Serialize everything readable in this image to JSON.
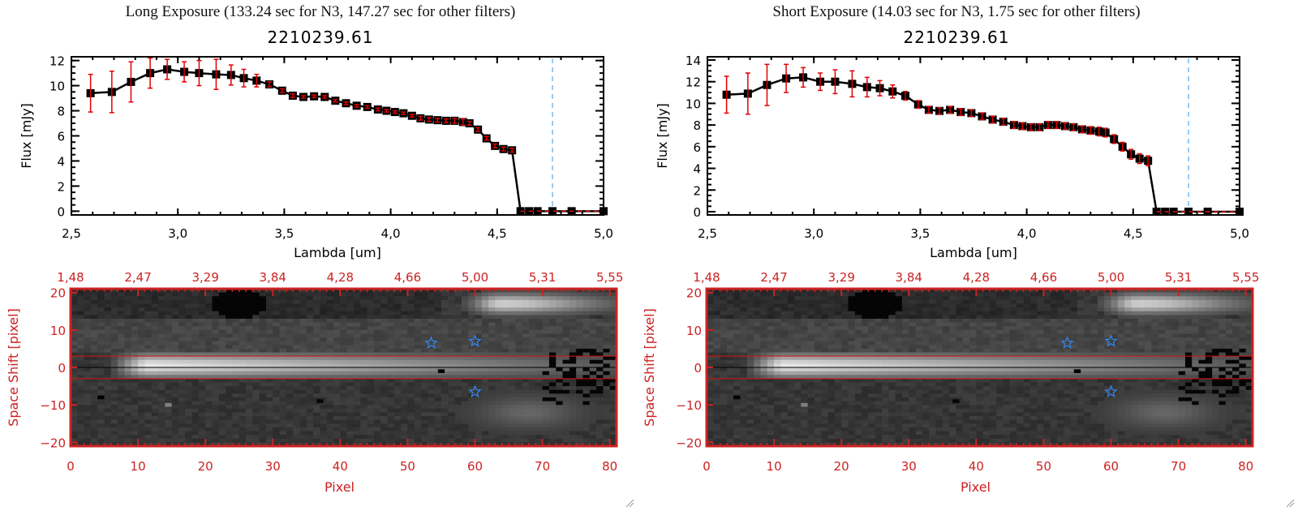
{
  "panels": [
    {
      "exposure_title": "Long Exposure (133.24 sec for N3, 147.27 sec for other filters)",
      "object_id": "2210239.61"
    },
    {
      "exposure_title": "Short Exposure (14.03 sec for N3, 1.75 sec for other filters)",
      "object_id": "2210239.61"
    }
  ],
  "chart_data": [
    {
      "type": "line",
      "title": "2210239.61",
      "subtitle": "Long Exposure (133.24 sec for N3, 147.27 sec for other filters)",
      "xlabel": "Lambda [um]",
      "ylabel": "Flux [mJy]",
      "xlim": [
        2.5,
        5.0
      ],
      "ylim": [
        -0.3,
        12.3
      ],
      "xticks": [
        "2.5",
        "3.0",
        "3.5",
        "4.0",
        "4.5",
        "5.0"
      ],
      "yticks": [
        "0",
        "2",
        "4",
        "6",
        "8",
        "10",
        "12"
      ],
      "vline_x": 4.76,
      "zero_line": true,
      "series": [
        {
          "name": "flux",
          "x": [
            2.59,
            2.69,
            2.78,
            2.87,
            2.95,
            3.03,
            3.1,
            3.18,
            3.25,
            3.31,
            3.37,
            3.43,
            3.49,
            3.54,
            3.59,
            3.64,
            3.69,
            3.74,
            3.79,
            3.84,
            3.89,
            3.94,
            3.98,
            4.02,
            4.06,
            4.1,
            4.14,
            4.18,
            4.22,
            4.26,
            4.3,
            4.34,
            4.37,
            4.41,
            4.45,
            4.49,
            4.53,
            4.57,
            4.61,
            4.65,
            4.69,
            4.76,
            4.85,
            5.0
          ],
          "y": [
            9.4,
            9.5,
            10.3,
            11.0,
            11.3,
            11.1,
            11.0,
            10.9,
            10.85,
            10.6,
            10.4,
            10.1,
            9.6,
            9.2,
            9.1,
            9.15,
            9.1,
            8.8,
            8.6,
            8.4,
            8.3,
            8.1,
            8.0,
            7.9,
            7.8,
            7.6,
            7.4,
            7.3,
            7.25,
            7.2,
            7.2,
            7.1,
            7.0,
            6.5,
            5.8,
            5.2,
            4.95,
            4.85,
            0,
            0,
            0,
            0,
            0,
            0
          ],
          "yerr": [
            1.5,
            1.65,
            1.6,
            1.2,
            0.8,
            0.8,
            1.0,
            1.2,
            0.8,
            0.7,
            0.5,
            0.2,
            0.15,
            0.15,
            0.1,
            0.1,
            0.1,
            0.1,
            0.1,
            0.1,
            0.1,
            0.1,
            0.1,
            0.1,
            0.1,
            0.1,
            0.15,
            0.15,
            0.15,
            0.15,
            0.2,
            0.25,
            0.15,
            0.15,
            0.15,
            0.15,
            0.15,
            0.15,
            0,
            0,
            0,
            0,
            0,
            0
          ]
        }
      ]
    },
    {
      "type": "line",
      "title": "2210239.61",
      "subtitle": "Short Exposure (14.03 sec for N3, 1.75 sec for other filters)",
      "xlabel": "Lambda [um]",
      "ylabel": "Flux [mJy]",
      "xlim": [
        2.5,
        5.0
      ],
      "ylim": [
        -0.3,
        14.3
      ],
      "xticks": [
        "2.5",
        "3.0",
        "3.5",
        "4.0",
        "4.5",
        "5.0"
      ],
      "yticks": [
        "0",
        "2",
        "4",
        "6",
        "8",
        "10",
        "12",
        "14"
      ],
      "vline_x": 4.76,
      "zero_line": true,
      "series": [
        {
          "name": "flux",
          "x": [
            2.59,
            2.69,
            2.78,
            2.87,
            2.95,
            3.03,
            3.1,
            3.18,
            3.25,
            3.31,
            3.37,
            3.43,
            3.49,
            3.54,
            3.59,
            3.64,
            3.69,
            3.74,
            3.79,
            3.84,
            3.89,
            3.94,
            3.98,
            4.02,
            4.06,
            4.1,
            4.14,
            4.18,
            4.22,
            4.26,
            4.3,
            4.34,
            4.37,
            4.41,
            4.45,
            4.49,
            4.53,
            4.57,
            4.61,
            4.65,
            4.69,
            4.76,
            4.85,
            5.0
          ],
          "y": [
            10.8,
            10.9,
            11.7,
            12.3,
            12.4,
            12.0,
            12.0,
            11.8,
            11.5,
            11.4,
            11.1,
            10.7,
            9.9,
            9.4,
            9.3,
            9.4,
            9.2,
            9.1,
            8.8,
            8.5,
            8.3,
            8.0,
            7.9,
            7.8,
            7.8,
            8.0,
            8.0,
            7.9,
            7.8,
            7.6,
            7.5,
            7.4,
            7.3,
            6.7,
            6.0,
            5.3,
            4.9,
            4.7,
            0,
            0,
            0,
            0,
            0,
            0
          ],
          "yerr": [
            1.7,
            1.9,
            1.9,
            1.3,
            0.9,
            0.8,
            1.1,
            1.2,
            0.9,
            0.7,
            0.6,
            0.4,
            0.35,
            0.3,
            0.3,
            0.3,
            0.3,
            0.3,
            0.3,
            0.3,
            0.3,
            0.3,
            0.3,
            0.3,
            0.3,
            0.3,
            0.3,
            0.3,
            0.3,
            0.3,
            0.35,
            0.4,
            0.4,
            0.4,
            0.4,
            0.45,
            0.45,
            0.45,
            0,
            0,
            0,
            0,
            0,
            0
          ]
        }
      ]
    },
    {
      "type": "heatmap",
      "xlabel": "Pixel",
      "ylabel": "Space Shift [pixel]",
      "xlim": [
        0,
        81
      ],
      "ylim": [
        -21,
        21
      ],
      "xticks": [
        "0",
        "10",
        "20",
        "30",
        "40",
        "50",
        "60",
        "70",
        "80"
      ],
      "yticks": [
        "-20",
        "-10",
        "0",
        "10",
        "20"
      ],
      "top_axis_ticks": [
        "1.48",
        "2.47",
        "3.29",
        "3.84",
        "4.28",
        "4.66",
        "5.00",
        "5.31",
        "5.55"
      ],
      "aperture_lines_y": [
        -3,
        3
      ],
      "center_line_y": 0,
      "star_markers": [
        [
          53.5,
          6.5
        ],
        [
          60,
          7
        ],
        [
          60,
          -6.5
        ]
      ],
      "sources": [
        {
          "name": "target-trace",
          "x_start": 7,
          "x_peak": 11,
          "y": 0.5,
          "brightness": 0.95
        },
        {
          "name": "upper-blob",
          "x_center": 64,
          "y": 17,
          "brightness": 0.85
        },
        {
          "name": "lower-blob",
          "x_center": 68,
          "y": -12,
          "brightness": 0.45
        }
      ]
    },
    {
      "type": "heatmap",
      "xlabel": "Pixel",
      "ylabel": "Space Shift [pixel]",
      "xlim": [
        0,
        81
      ],
      "ylim": [
        -21,
        21
      ],
      "xticks": [
        "0",
        "10",
        "20",
        "30",
        "40",
        "50",
        "60",
        "70",
        "80"
      ],
      "yticks": [
        "-20",
        "-10",
        "0",
        "10",
        "20"
      ],
      "top_axis_ticks": [
        "1.48",
        "2.47",
        "3.29",
        "3.84",
        "4.28",
        "4.66",
        "5.00",
        "5.31",
        "5.55"
      ],
      "aperture_lines_y": [
        -3,
        3
      ],
      "center_line_y": 0,
      "star_markers": [
        [
          53.5,
          6.5
        ],
        [
          60,
          7
        ],
        [
          60,
          -6.5
        ]
      ],
      "sources": [
        {
          "name": "target-trace",
          "x_start": 7,
          "x_peak": 11,
          "y": 0.5,
          "brightness": 0.95
        },
        {
          "name": "upper-blob",
          "x_center": 64,
          "y": 17,
          "brightness": 0.85
        },
        {
          "name": "lower-blob",
          "x_center": 68,
          "y": -12,
          "brightness": 0.45
        }
      ]
    }
  ],
  "colors": {
    "axis_black": "#000000",
    "errorbar_red": "#e00000",
    "image_axis_red": "#cc2222",
    "vline_blue": "#3399ee",
    "zero_dash_red": "#dd1111",
    "star_blue": "#3388ee"
  }
}
